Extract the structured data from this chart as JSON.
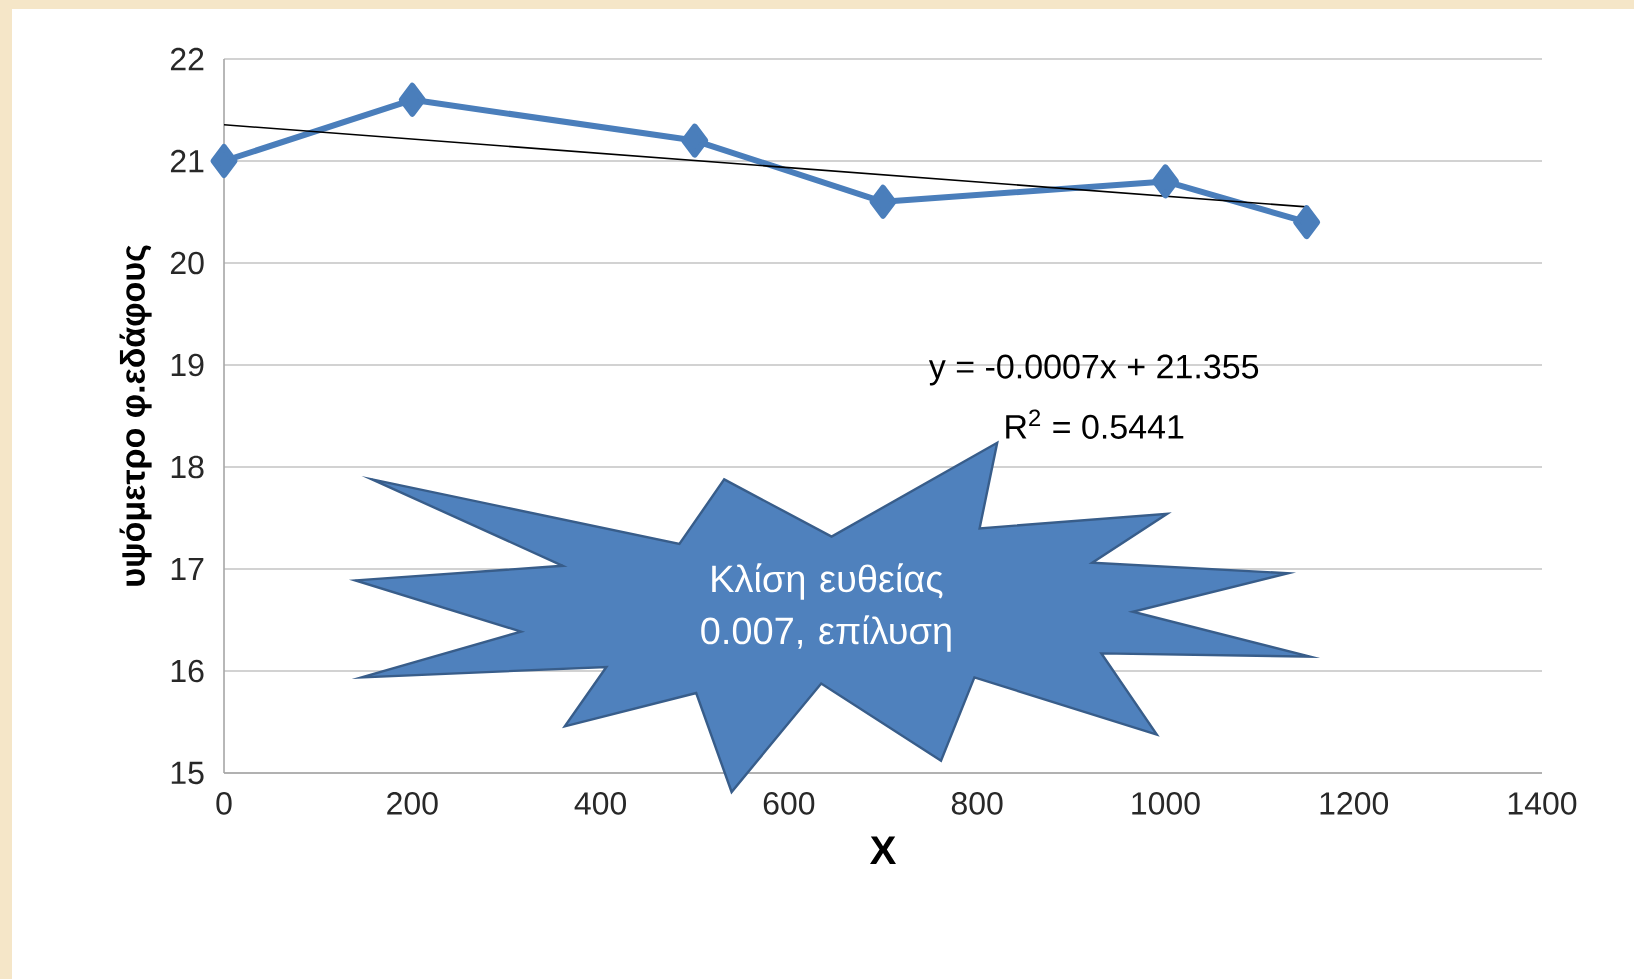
{
  "chart_data": {
    "type": "line",
    "xlabel": "X",
    "ylabel": "υψόμετρο φ.εδάφους",
    "xlim": [
      0,
      1400
    ],
    "ylim": [
      15,
      22
    ],
    "xticks": [
      0,
      200,
      400,
      600,
      800,
      1000,
      1200,
      1400
    ],
    "yticks": [
      15,
      16,
      17,
      18,
      19,
      20,
      21,
      22
    ],
    "grid": "y",
    "marker": "diamond",
    "series": [
      {
        "color": "#4a7ebb",
        "x": [
          0,
          200,
          500,
          700,
          1000,
          1150
        ],
        "values": [
          21,
          21.6,
          21.2,
          20.6,
          20.8,
          20.4
        ]
      },
      {
        "type": "line",
        "marker": "none",
        "color": "#000000",
        "x": [
          0,
          1150
        ],
        "values": [
          21.355,
          20.55
        ]
      }
    ],
    "annotations": [
      "y = -0.0007x + 21.355",
      "R$^{2}$ = 0.5441",
      "Κλίση ευθείας 0.007, επίλυση"
    ]
  }
}
